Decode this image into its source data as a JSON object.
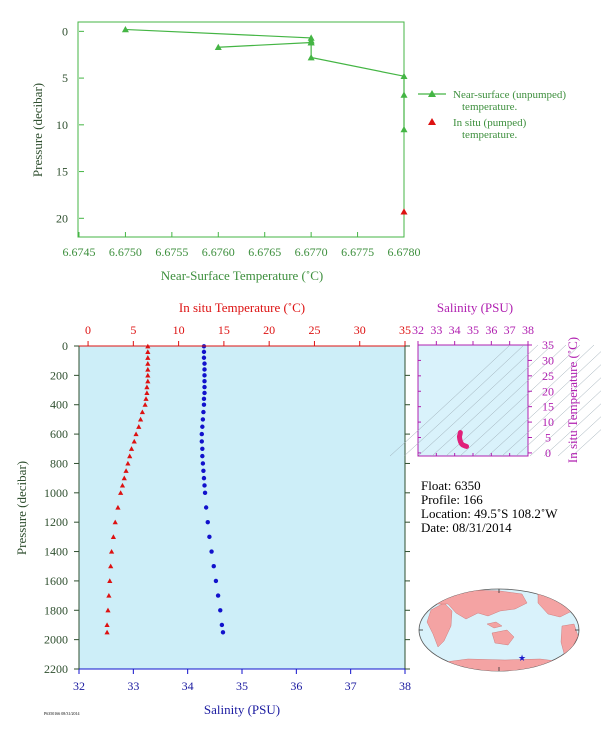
{
  "colors": {
    "near_surface": "#44b544",
    "near_surface_text": "#3d8f3d",
    "insitu_temp": "#dd1111",
    "salinity": "#1111cc",
    "salinity_axis_text": "#1a1aa0",
    "ts_axis": "#b020b0",
    "ts_blob": "#e0207a",
    "panel_bg": "#cdeef8",
    "axis_text": "#2f4f2f",
    "land": "#f4a3a3",
    "ocean": "#d9f2fb",
    "float_marker": "#1a1acc"
  },
  "chart_data": [
    {
      "type": "scatter",
      "role": "near-surface temperature profile",
      "xlabel": "Near-Surface Temperature (˚C)",
      "ylabel": "Pressure (decibar)",
      "xlim": [
        6.6745,
        6.678
      ],
      "ylim": [
        22,
        -1
      ],
      "y_inverted": true,
      "x_ticks": [
        "6.6745",
        "6.6750",
        "6.6755",
        "6.6760",
        "6.6765",
        "6.6770",
        "6.6775",
        "6.6780"
      ],
      "y_ticks": [
        "0",
        "5",
        "10",
        "15",
        "20"
      ],
      "legend_position": "right",
      "series": [
        {
          "name": "Near-surface (unpumped)\ntemperature.",
          "marker": "triangle",
          "connected": true,
          "points": [
            {
              "x": 6.675,
              "y": -0.2
            },
            {
              "x": 6.677,
              "y": 0.7
            },
            {
              "x": 6.677,
              "y": 1.0
            },
            {
              "x": 6.677,
              "y": 1.2
            },
            {
              "x": 6.676,
              "y": 1.7
            },
            {
              "x": 6.677,
              "y": 1.2
            },
            {
              "x": 6.677,
              "y": 2.8
            },
            {
              "x": 6.678,
              "y": 4.8
            },
            {
              "x": 6.678,
              "y": 6.8
            },
            {
              "x": 6.678,
              "y": 10.5
            }
          ]
        },
        {
          "name": "In situ (pumped)\ntemperature.",
          "marker": "triangle",
          "connected": false,
          "points": [
            {
              "x": 6.678,
              "y": 19.3
            }
          ]
        }
      ]
    },
    {
      "type": "line",
      "role": "main profile",
      "ylabel": "Pressure (decibar)",
      "top_xlabel": "In situ Temperature (˚C)",
      "bottom_xlabel": "Salinity (PSU)",
      "temperature_xlim": [
        -1,
        35
      ],
      "salinity_xlim": [
        32,
        38
      ],
      "ylim": [
        2200,
        0
      ],
      "y_inverted": true,
      "temperature_ticks": [
        "0",
        "5",
        "10",
        "15",
        "20",
        "25",
        "30",
        "35"
      ],
      "salinity_ticks": [
        "32",
        "33",
        "34",
        "35",
        "36",
        "37",
        "38"
      ],
      "pressure_ticks": [
        "0",
        "200",
        "400",
        "600",
        "800",
        "1000",
        "1200",
        "1400",
        "1600",
        "1800",
        "2000",
        "2200"
      ],
      "series": [
        {
          "name": "In situ Temperature (˚C)",
          "marker": "triangle",
          "points": [
            {
              "p": 2,
              "t": 6.6
            },
            {
              "p": 40,
              "t": 6.6
            },
            {
              "p": 80,
              "t": 6.6
            },
            {
              "p": 120,
              "t": 6.6
            },
            {
              "p": 160,
              "t": 6.6
            },
            {
              "p": 200,
              "t": 6.6
            },
            {
              "p": 240,
              "t": 6.6
            },
            {
              "p": 280,
              "t": 6.5
            },
            {
              "p": 320,
              "t": 6.5
            },
            {
              "p": 360,
              "t": 6.4
            },
            {
              "p": 400,
              "t": 6.3
            },
            {
              "p": 450,
              "t": 6.0
            },
            {
              "p": 500,
              "t": 5.8
            },
            {
              "p": 550,
              "t": 5.6
            },
            {
              "p": 600,
              "t": 5.3
            },
            {
              "p": 650,
              "t": 5.1
            },
            {
              "p": 700,
              "t": 4.8
            },
            {
              "p": 750,
              "t": 4.6
            },
            {
              "p": 800,
              "t": 4.4
            },
            {
              "p": 850,
              "t": 4.2
            },
            {
              "p": 900,
              "t": 4.0
            },
            {
              "p": 950,
              "t": 3.8
            },
            {
              "p": 1000,
              "t": 3.6
            },
            {
              "p": 1100,
              "t": 3.3
            },
            {
              "p": 1200,
              "t": 3.0
            },
            {
              "p": 1300,
              "t": 2.8
            },
            {
              "p": 1400,
              "t": 2.6
            },
            {
              "p": 1500,
              "t": 2.5
            },
            {
              "p": 1600,
              "t": 2.4
            },
            {
              "p": 1700,
              "t": 2.3
            },
            {
              "p": 1800,
              "t": 2.2
            },
            {
              "p": 1900,
              "t": 2.1
            },
            {
              "p": 1950,
              "t": 2.1
            }
          ]
        },
        {
          "name": "Salinity (PSU)",
          "marker": "circle",
          "points": [
            {
              "p": 2,
              "s": 34.3
            },
            {
              "p": 40,
              "s": 34.3
            },
            {
              "p": 80,
              "s": 34.3
            },
            {
              "p": 120,
              "s": 34.31
            },
            {
              "p": 160,
              "s": 34.31
            },
            {
              "p": 200,
              "s": 34.31
            },
            {
              "p": 240,
              "s": 34.31
            },
            {
              "p": 280,
              "s": 34.31
            },
            {
              "p": 320,
              "s": 34.31
            },
            {
              "p": 360,
              "s": 34.3
            },
            {
              "p": 400,
              "s": 34.3
            },
            {
              "p": 450,
              "s": 34.29
            },
            {
              "p": 500,
              "s": 34.28
            },
            {
              "p": 550,
              "s": 34.27
            },
            {
              "p": 600,
              "s": 34.26
            },
            {
              "p": 650,
              "s": 34.26
            },
            {
              "p": 700,
              "s": 34.27
            },
            {
              "p": 750,
              "s": 34.27
            },
            {
              "p": 800,
              "s": 34.28
            },
            {
              "p": 850,
              "s": 34.29
            },
            {
              "p": 900,
              "s": 34.3
            },
            {
              "p": 950,
              "s": 34.31
            },
            {
              "p": 1000,
              "s": 34.32
            },
            {
              "p": 1100,
              "s": 34.34
            },
            {
              "p": 1200,
              "s": 34.37
            },
            {
              "p": 1300,
              "s": 34.4
            },
            {
              "p": 1400,
              "s": 34.44
            },
            {
              "p": 1500,
              "s": 34.48
            },
            {
              "p": 1600,
              "s": 34.52
            },
            {
              "p": 1700,
              "s": 34.56
            },
            {
              "p": 1800,
              "s": 34.6
            },
            {
              "p": 1900,
              "s": 34.63
            },
            {
              "p": 1950,
              "s": 34.65
            }
          ]
        }
      ]
    },
    {
      "type": "scatter",
      "role": "temperature-salinity diagram",
      "xlabel": "Salinity (PSU)",
      "ylabel": "In situ Temperature (˚C)",
      "xlim": [
        32,
        38
      ],
      "ylim": [
        -1,
        35
      ],
      "x_ticks": [
        "32",
        "33",
        "34",
        "35",
        "36",
        "37",
        "38"
      ],
      "y_ticks": [
        "0",
        "5",
        "10",
        "15",
        "20",
        "25",
        "30",
        "35"
      ],
      "points": [
        {
          "s": 34.65,
          "t": 2.1
        },
        {
          "s": 34.6,
          "t": 2.2
        },
        {
          "s": 34.52,
          "t": 2.4
        },
        {
          "s": 34.44,
          "t": 2.6
        },
        {
          "s": 34.37,
          "t": 3.0
        },
        {
          "s": 34.32,
          "t": 3.6
        },
        {
          "s": 34.28,
          "t": 4.4
        },
        {
          "s": 34.26,
          "t": 5.3
        },
        {
          "s": 34.29,
          "t": 6.0
        },
        {
          "s": 34.3,
          "t": 6.3
        },
        {
          "s": 34.31,
          "t": 6.6
        }
      ]
    }
  ],
  "info": {
    "float": "Float:  6350",
    "profile": "Profile:  166",
    "location": "Location:  49.5˚S  108.2˚W",
    "date": "Date:  08/31/2014"
  },
  "footer_code": "P6350166 08/31/2014",
  "map": {
    "float_lat": -49.5,
    "float_lon": -108.2
  }
}
